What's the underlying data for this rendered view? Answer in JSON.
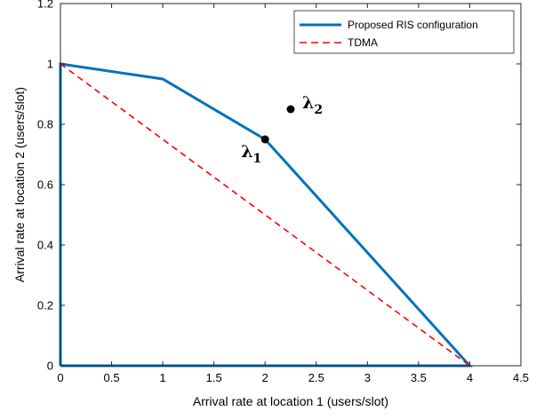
{
  "chart_data": {
    "type": "line",
    "xlabel": "Arrival rate at location 1 (users/slot)",
    "ylabel": "Arrival rate at location 2 (users/slot)",
    "xlim": [
      0,
      4.5
    ],
    "ylim": [
      0,
      1.2
    ],
    "xticks": [
      "0",
      "0.5",
      "1",
      "1.5",
      "2",
      "2.5",
      "3",
      "3.5",
      "4",
      "4.5"
    ],
    "yticks": [
      "0",
      "0.2",
      "0.4",
      "0.6",
      "0.8",
      "1",
      "1.2"
    ],
    "grid": false,
    "legend_position": "top-right",
    "series": [
      {
        "name": "Proposed RIS configuration",
        "color": "#0072BD",
        "style": "solid",
        "x": [
          0,
          0,
          1,
          2,
          4,
          0
        ],
        "y": [
          0,
          1,
          0.95,
          0.75,
          0,
          0
        ]
      },
      {
        "name": "TDMA",
        "color": "#FF0000",
        "style": "dashed",
        "x": [
          0,
          4
        ],
        "y": [
          1,
          0
        ]
      }
    ],
    "points": [
      {
        "label": "λ",
        "subscript": "1",
        "x": 2,
        "y": 0.75,
        "label_side": "below-left"
      },
      {
        "label": "λ",
        "subscript": "2",
        "x": 2.25,
        "y": 0.85,
        "label_side": "above-right"
      }
    ]
  }
}
